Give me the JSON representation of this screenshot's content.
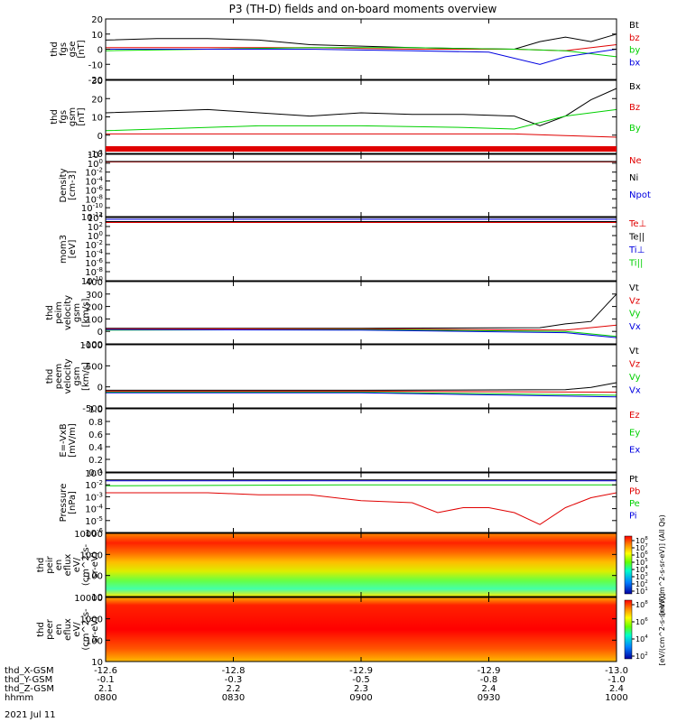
{
  "title": "P3 (TH-D) fields and on-board moments overview",
  "date_label": "2021 Jul 11",
  "colors": {
    "black": "#000000",
    "red": "#e00000",
    "green": "#00d000",
    "blue": "#0000e0"
  },
  "chart_data": [
    {
      "type": "line",
      "panel": "fgs_gse",
      "ylabel": [
        "thd",
        "fgs",
        "gse",
        "[nT]"
      ],
      "ylim": [
        -20,
        20
      ],
      "yticks": [
        "20",
        "10",
        "0",
        "-10",
        "-20"
      ],
      "legend": [
        {
          "name": "Bt",
          "color": "black"
        },
        {
          "name": "bz",
          "color": "red"
        },
        {
          "name": "by",
          "color": "green"
        },
        {
          "name": "bx",
          "color": "blue"
        }
      ],
      "series": [
        {
          "name": "Bt",
          "color": "black",
          "x": [
            0,
            0.1,
            0.2,
            0.3,
            0.4,
            0.5,
            0.6,
            0.7,
            0.8,
            0.85,
            0.9,
            0.95,
            1
          ],
          "y": [
            6,
            7,
            7,
            6,
            3,
            2,
            1,
            0.5,
            0,
            5,
            8,
            5,
            10
          ]
        },
        {
          "name": "bz",
          "color": "red",
          "x": [
            0,
            0.2,
            0.4,
            0.6,
            0.8,
            0.9,
            1
          ],
          "y": [
            1,
            1,
            1,
            0,
            0,
            -1,
            3
          ]
        },
        {
          "name": "by",
          "color": "green",
          "x": [
            0,
            0.2,
            0.4,
            0.6,
            0.8,
            0.9,
            1
          ],
          "y": [
            -1,
            0,
            1,
            1,
            0,
            -1,
            -5
          ]
        },
        {
          "name": "bx",
          "color": "blue",
          "x": [
            0,
            0.2,
            0.4,
            0.6,
            0.75,
            0.85,
            0.9,
            1
          ],
          "y": [
            0,
            0,
            0,
            -1,
            -2,
            -10,
            -5,
            0
          ]
        }
      ]
    },
    {
      "type": "line",
      "panel": "fgs_gsm",
      "ylabel": [
        "thd",
        "fgs",
        "gsm",
        "[nT]"
      ],
      "ylim": [
        -15,
        30
      ],
      "yticks": [
        "30",
        "20",
        "10",
        "0",
        "-10"
      ],
      "legend": [
        {
          "name": "Bx",
          "color": "black"
        },
        {
          "name": "Bz",
          "color": "red"
        },
        {
          "name": "By",
          "color": "green"
        }
      ],
      "series": [
        {
          "name": "Bx",
          "color": "black",
          "x": [
            0,
            0.1,
            0.2,
            0.3,
            0.4,
            0.5,
            0.6,
            0.7,
            0.8,
            0.85,
            0.9,
            0.95,
            1
          ],
          "y": [
            10,
            11,
            12,
            10,
            8,
            10,
            9,
            9,
            8,
            2,
            8,
            18,
            25
          ]
        },
        {
          "name": "Bz",
          "color": "red",
          "x": [
            0,
            0.2,
            0.4,
            0.6,
            0.8,
            0.9,
            1
          ],
          "y": [
            -3,
            -3,
            -3,
            -3,
            -3,
            -4,
            -5
          ]
        },
        {
          "name": "By",
          "color": "green",
          "x": [
            0,
            0.1,
            0.3,
            0.5,
            0.7,
            0.8,
            0.9,
            1
          ],
          "y": [
            -1,
            0,
            2,
            2,
            1,
            0,
            8,
            12
          ]
        }
      ]
    },
    {
      "type": "line",
      "panel": "density",
      "ylabel": [
        "Density",
        "[cm-3]"
      ],
      "scale": "log",
      "ylim": [
        -12,
        2
      ],
      "yticks": [
        "10^2",
        "10^0",
        "10^-2",
        "10^-4",
        "10^-6",
        "10^-8",
        "10^-10",
        "10^-12"
      ],
      "legend": [
        {
          "name": "Ne",
          "color": "red"
        },
        {
          "name": "Ni",
          "color": "black"
        },
        {
          "name": "Npot",
          "color": "blue"
        }
      ],
      "series": [
        {
          "name": "Ne",
          "color": "red",
          "x": [
            0,
            1
          ],
          "y": [
            0.3,
            0.3
          ]
        },
        {
          "name": "Ni",
          "color": "black",
          "x": [
            0,
            1
          ],
          "y": [
            0.4,
            0.4
          ]
        }
      ]
    },
    {
      "type": "line",
      "panel": "temperature",
      "ylabel": [
        "mom3",
        "[eV]"
      ],
      "scale": "log",
      "ylim": [
        -10,
        4
      ],
      "yticks": [
        "10^4",
        "10^2",
        "10^0",
        "10^-2",
        "10^-4",
        "10^-6",
        "10^-8",
        "10^-10"
      ],
      "legend": [
        {
          "name": "Te⊥",
          "color": "red"
        },
        {
          "name": "Te||",
          "color": "black"
        },
        {
          "name": "Ti⊥",
          "color": "blue"
        },
        {
          "name": "Ti||",
          "color": "green"
        }
      ],
      "series": [
        {
          "name": "Ti",
          "color": "blue",
          "x": [
            0,
            1
          ],
          "y": [
            3.6,
            3.6
          ]
        },
        {
          "name": "Te",
          "color": "black",
          "x": [
            0,
            1
          ],
          "y": [
            3.1,
            3.1
          ]
        },
        {
          "name": "Te⊥",
          "color": "red",
          "x": [
            0,
            1
          ],
          "y": [
            2.9,
            2.9
          ]
        }
      ]
    },
    {
      "type": "line",
      "panel": "peim_velocity",
      "ylabel": [
        "thd",
        "peim",
        "velocity",
        "gsm",
        "[km/s]"
      ],
      "ylim": [
        -100,
        400
      ],
      "yticks": [
        "400",
        "300",
        "200",
        "100",
        "0",
        "-100"
      ],
      "legend": [
        {
          "name": "Vt",
          "color": "black"
        },
        {
          "name": "Vz",
          "color": "red"
        },
        {
          "name": "Vy",
          "color": "green"
        },
        {
          "name": "Vx",
          "color": "blue"
        }
      ],
      "series": [
        {
          "name": "Vt",
          "color": "black",
          "x": [
            0,
            0.5,
            0.85,
            0.9,
            0.95,
            1
          ],
          "y": [
            25,
            25,
            30,
            60,
            80,
            300
          ]
        },
        {
          "name": "Vz",
          "color": "red",
          "x": [
            0,
            0.5,
            0.9,
            1
          ],
          "y": [
            20,
            20,
            10,
            50
          ]
        },
        {
          "name": "Vy",
          "color": "green",
          "x": [
            0,
            0.5,
            0.9,
            1
          ],
          "y": [
            10,
            15,
            0,
            -40
          ]
        },
        {
          "name": "Vx",
          "color": "blue",
          "x": [
            0,
            0.5,
            0.9,
            1
          ],
          "y": [
            15,
            10,
            -10,
            -50
          ]
        }
      ]
    },
    {
      "type": "line",
      "panel": "peem_velocity",
      "ylabel": [
        "thd",
        "peem",
        "velocity",
        "gsm",
        "[km/s]"
      ],
      "ylim": [
        -500,
        1500
      ],
      "yticks": [
        "1000",
        "500",
        "0",
        "-500"
      ],
      "legend": [
        {
          "name": "Vt",
          "color": "black"
        },
        {
          "name": "Vz",
          "color": "red"
        },
        {
          "name": "Vy",
          "color": "green"
        },
        {
          "name": "Vx",
          "color": "blue"
        }
      ],
      "series": [
        {
          "name": "Vt",
          "color": "black",
          "x": [
            0,
            0.5,
            0.9,
            0.95,
            1
          ],
          "y": [
            60,
            60,
            80,
            150,
            300
          ]
        },
        {
          "name": "Vz",
          "color": "red",
          "x": [
            0,
            0.5,
            1
          ],
          "y": [
            30,
            30,
            0
          ]
        },
        {
          "name": "Vy",
          "color": "green",
          "x": [
            0,
            0.5,
            1
          ],
          "y": [
            0,
            0,
            -100
          ]
        },
        {
          "name": "Vx",
          "color": "blue",
          "x": [
            0,
            0.5,
            1
          ],
          "y": [
            -20,
            -20,
            -150
          ]
        }
      ]
    },
    {
      "type": "line",
      "panel": "efield",
      "ylabel": [
        "E=-VxB",
        "[mV/m]"
      ],
      "ylim": [
        0,
        1
      ],
      "yticks": [
        "1.0",
        "0.8",
        "0.6",
        "0.4",
        "0.2",
        "0.0"
      ],
      "legend": [
        {
          "name": "Ez",
          "color": "red"
        },
        {
          "name": "Ey",
          "color": "green"
        },
        {
          "name": "Ex",
          "color": "blue"
        }
      ],
      "series": []
    },
    {
      "type": "line",
      "panel": "pressure",
      "ylabel": [
        "Pressure",
        "[nPa]"
      ],
      "scale": "log",
      "ylim": [
        -6,
        0
      ],
      "yticks": [
        "10^-1",
        "10^-2",
        "10^-3",
        "10^-4",
        "10^-5",
        "10^-6"
      ],
      "legend": [
        {
          "name": "Pt",
          "color": "black"
        },
        {
          "name": "Pb",
          "color": "red"
        },
        {
          "name": "Pe",
          "color": "green"
        },
        {
          "name": "Pi",
          "color": "blue"
        }
      ],
      "series": [
        {
          "name": "Pt",
          "color": "black",
          "x": [
            0,
            0.5,
            1
          ],
          "y": [
            -0.7,
            -0.7,
            -0.7
          ]
        },
        {
          "name": "Pi",
          "color": "blue",
          "x": [
            0,
            0.5,
            1
          ],
          "y": [
            -0.8,
            -0.8,
            -0.8
          ]
        },
        {
          "name": "Pe",
          "color": "green",
          "x": [
            0,
            0.5,
            1
          ],
          "y": [
            -1.3,
            -1.2,
            -1.2
          ]
        },
        {
          "name": "Pb",
          "color": "red",
          "x": [
            0,
            0.1,
            0.2,
            0.3,
            0.4,
            0.5,
            0.6,
            0.65,
            0.7,
            0.75,
            0.8,
            0.85,
            0.9,
            0.95,
            1
          ],
          "y": [
            -2,
            -2,
            -2,
            -2.2,
            -2.2,
            -2.8,
            -3,
            -4,
            -3.5,
            -3.5,
            -4,
            -5.2,
            -3.5,
            -2.5,
            -2
          ]
        }
      ]
    },
    {
      "type": "heatmap",
      "panel": "peir_spectrogram",
      "ylabel": [
        "thd",
        "peir",
        "en",
        "eflux",
        "eV/",
        "(cm^2-s-",
        "sr-eV)"
      ],
      "scale": "log",
      "ylim": [
        0.7,
        4.2
      ],
      "yticks": [
        "10000",
        "1000",
        "100",
        "10"
      ],
      "colorbar": {
        "ticks": [
          "10^8",
          "10^7",
          "10^6",
          "10^5",
          "10^4",
          "10^3",
          "10^2",
          "10^1"
        ],
        "label": "[eV/(cm^2-s-sr-eV)] (All Qs)"
      }
    },
    {
      "type": "heatmap",
      "panel": "peer_spectrogram",
      "ylabel": [
        "thd",
        "peer",
        "en",
        "eflux",
        "eV/",
        "(cm^2-s-",
        "sr-eV)"
      ],
      "scale": "log",
      "ylim": [
        0.7,
        4.2
      ],
      "yticks": [
        "10000",
        "1000",
        "100",
        "10"
      ],
      "colorbar": {
        "ticks": [
          "10^8",
          "10^6",
          "10^4",
          "10^2"
        ],
        "label": "[eV/(cm^2-s-sr-eV)]"
      }
    }
  ],
  "xaxis": {
    "rows": [
      {
        "label": "thd_X-GSM",
        "values": [
          "-12.6",
          "-12.8",
          "-12.9",
          "-12.9",
          "-13.0"
        ]
      },
      {
        "label": "thd_Y-GSM",
        "values": [
          "-0.1",
          "-0.3",
          "-0.5",
          "-0.8",
          "-1.0"
        ]
      },
      {
        "label": "thd_Z-GSM",
        "values": [
          "2.1",
          "2.2",
          "2.3",
          "2.4",
          "2.4"
        ]
      },
      {
        "label": "hhmm",
        "values": [
          "0800",
          "0830",
          "0900",
          "0930",
          "1000"
        ]
      }
    ]
  }
}
